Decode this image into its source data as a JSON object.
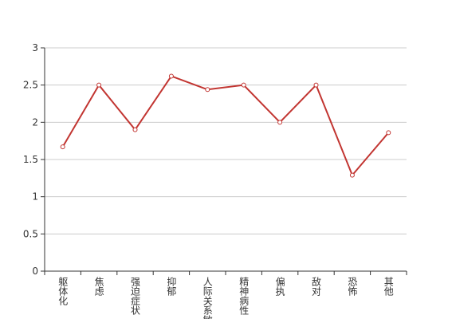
{
  "chart_data": {
    "type": "line",
    "categories": [
      "躯体化",
      "焦虑",
      "强迫症状",
      "抑郁",
      "人际关系敏感",
      "精神病性",
      "偏执",
      "敌对",
      "恐怖",
      "其他"
    ],
    "values": [
      1.67,
      2.5,
      1.9,
      2.62,
      2.44,
      2.5,
      2.0,
      2.5,
      1.29,
      1.86
    ],
    "color": "#c23531",
    "ylim": [
      0,
      3
    ],
    "yticks": [
      0,
      0.5,
      1,
      1.5,
      2,
      2.5,
      3
    ],
    "grid": true
  }
}
